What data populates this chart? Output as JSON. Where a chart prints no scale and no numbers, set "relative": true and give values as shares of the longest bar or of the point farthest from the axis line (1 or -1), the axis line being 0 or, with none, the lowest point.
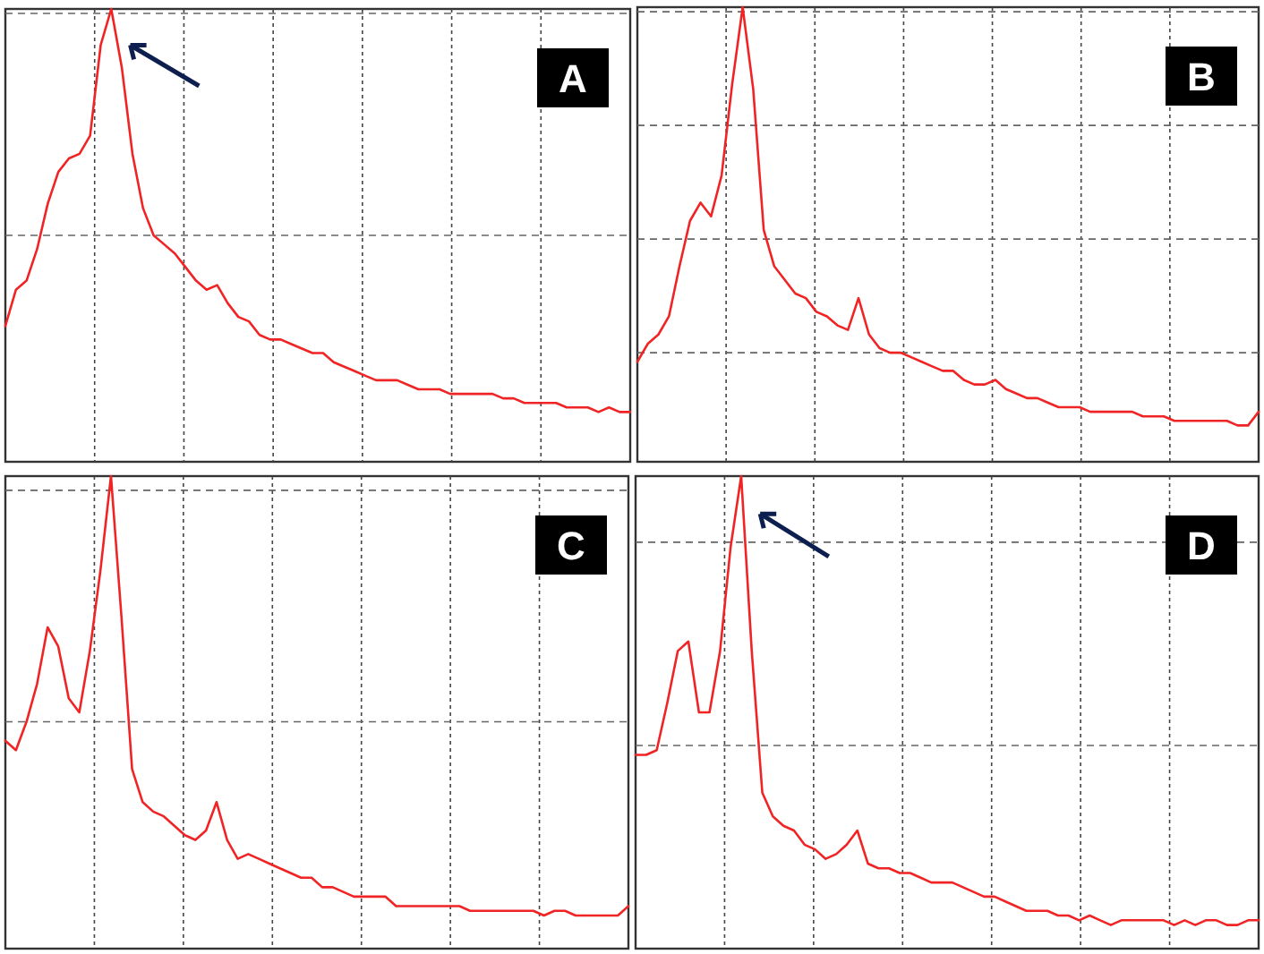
{
  "chart_data": [
    {
      "type": "line",
      "title": "A",
      "relative": true,
      "grid": "x",
      "ref_lines": [
        {
          "axis": "y",
          "value": 0.5,
          "color": "#666666",
          "line_style": "dashed"
        },
        {
          "axis": "y",
          "value": 0.99,
          "color": "#666666",
          "line_style": "dashed"
        }
      ],
      "categories": [
        null,
        null,
        null,
        null,
        null,
        null,
        null,
        null,
        null,
        null,
        null,
        null,
        null,
        null,
        null,
        null,
        null,
        null,
        null,
        null,
        null,
        null,
        null,
        null,
        null,
        null,
        null,
        null,
        null,
        null,
        null,
        null,
        null,
        null,
        null,
        null,
        null,
        null,
        null,
        null,
        null,
        null,
        null,
        null,
        null,
        null,
        null,
        null,
        null,
        null,
        null,
        null,
        null,
        null,
        null,
        null,
        null,
        null,
        null,
        null
      ],
      "series": [
        {
          "color": "#f02424",
          "values": [
            0.3,
            0.38,
            0.4,
            0.47,
            0.57,
            0.64,
            0.67,
            0.68,
            0.72,
            0.92,
            1.0,
            0.87,
            0.68,
            0.56,
            0.5,
            0.48,
            0.46,
            0.43,
            0.4,
            0.38,
            0.39,
            0.35,
            0.32,
            0.31,
            0.28,
            0.27,
            0.27,
            0.26,
            0.25,
            0.24,
            0.24,
            0.22,
            0.21,
            0.2,
            0.19,
            0.18,
            0.18,
            0.18,
            0.17,
            0.16,
            0.16,
            0.16,
            0.15,
            0.15,
            0.15,
            0.15,
            0.15,
            0.14,
            0.14,
            0.13,
            0.13,
            0.13,
            0.13,
            0.12,
            0.12,
            0.12,
            0.11,
            0.12,
            0.11,
            0.11
          ]
        }
      ]
    },
    {
      "type": "line",
      "title": "B",
      "relative": true,
      "grid": "x",
      "ref_lines": [
        {
          "axis": "y",
          "value": 0.24,
          "color": "#666666",
          "line_style": "dashed"
        },
        {
          "axis": "y",
          "value": 0.49,
          "color": "#666666",
          "line_style": "dashed"
        },
        {
          "axis": "y",
          "value": 0.74,
          "color": "#666666",
          "line_style": "dashed"
        },
        {
          "axis": "y",
          "value": 0.99,
          "color": "#666666",
          "line_style": "dashed"
        }
      ],
      "categories": [
        null,
        null,
        null,
        null,
        null,
        null,
        null,
        null,
        null,
        null,
        null,
        null,
        null,
        null,
        null,
        null,
        null,
        null,
        null,
        null,
        null,
        null,
        null,
        null,
        null,
        null,
        null,
        null,
        null,
        null,
        null,
        null,
        null,
        null,
        null,
        null,
        null,
        null,
        null,
        null,
        null,
        null,
        null,
        null,
        null,
        null,
        null,
        null,
        null,
        null,
        null,
        null,
        null,
        null,
        null,
        null,
        null,
        null,
        null,
        null
      ],
      "series": [
        {
          "color": "#f02424",
          "values": [
            0.22,
            0.26,
            0.28,
            0.32,
            0.43,
            0.53,
            0.57,
            0.54,
            0.63,
            0.83,
            1.0,
            0.82,
            0.51,
            0.43,
            0.4,
            0.37,
            0.36,
            0.33,
            0.32,
            0.3,
            0.29,
            0.36,
            0.28,
            0.25,
            0.24,
            0.24,
            0.23,
            0.22,
            0.21,
            0.2,
            0.2,
            0.18,
            0.17,
            0.17,
            0.18,
            0.16,
            0.15,
            0.14,
            0.14,
            0.13,
            0.12,
            0.12,
            0.12,
            0.11,
            0.11,
            0.11,
            0.11,
            0.11,
            0.1,
            0.1,
            0.1,
            0.09,
            0.09,
            0.09,
            0.09,
            0.09,
            0.09,
            0.08,
            0.08,
            0.11
          ]
        }
      ]
    },
    {
      "type": "line",
      "title": "C",
      "relative": true,
      "grid": "x",
      "ref_lines": [
        {
          "axis": "y",
          "value": 0.48,
          "color": "#666666",
          "line_style": "dashed"
        },
        {
          "axis": "y",
          "value": 0.97,
          "color": "#666666",
          "line_style": "dashed"
        }
      ],
      "categories": [
        null,
        null,
        null,
        null,
        null,
        null,
        null,
        null,
        null,
        null,
        null,
        null,
        null,
        null,
        null,
        null,
        null,
        null,
        null,
        null,
        null,
        null,
        null,
        null,
        null,
        null,
        null,
        null,
        null,
        null,
        null,
        null,
        null,
        null,
        null,
        null,
        null,
        null,
        null,
        null,
        null,
        null,
        null,
        null,
        null,
        null,
        null,
        null,
        null,
        null,
        null,
        null,
        null,
        null,
        null,
        null,
        null,
        null,
        null,
        null
      ],
      "series": [
        {
          "color": "#f02424",
          "values": [
            0.44,
            0.42,
            0.48,
            0.56,
            0.68,
            0.64,
            0.53,
            0.5,
            0.63,
            0.8,
            1.0,
            0.7,
            0.38,
            0.31,
            0.29,
            0.28,
            0.26,
            0.24,
            0.23,
            0.25,
            0.31,
            0.23,
            0.19,
            0.2,
            0.19,
            0.18,
            0.17,
            0.16,
            0.15,
            0.15,
            0.13,
            0.13,
            0.12,
            0.11,
            0.11,
            0.11,
            0.11,
            0.09,
            0.09,
            0.09,
            0.09,
            0.09,
            0.09,
            0.09,
            0.08,
            0.08,
            0.08,
            0.08,
            0.08,
            0.08,
            0.08,
            0.07,
            0.08,
            0.08,
            0.07,
            0.07,
            0.07,
            0.07,
            0.07,
            0.09
          ]
        }
      ]
    },
    {
      "type": "line",
      "title": "D",
      "relative": true,
      "grid": "x",
      "ref_lines": [
        {
          "axis": "y",
          "value": 0.43,
          "color": "#666666",
          "line_style": "dashed"
        },
        {
          "axis": "y",
          "value": 0.86,
          "color": "#666666",
          "line_style": "dashed"
        }
      ],
      "categories": [
        null,
        null,
        null,
        null,
        null,
        null,
        null,
        null,
        null,
        null,
        null,
        null,
        null,
        null,
        null,
        null,
        null,
        null,
        null,
        null,
        null,
        null,
        null,
        null,
        null,
        null,
        null,
        null,
        null,
        null,
        null,
        null,
        null,
        null,
        null,
        null,
        null,
        null,
        null,
        null,
        null,
        null,
        null,
        null,
        null,
        null,
        null,
        null,
        null,
        null,
        null,
        null,
        null,
        null,
        null,
        null,
        null,
        null,
        null,
        null
      ],
      "series": [
        {
          "color": "#f02424",
          "values": [
            0.41,
            0.41,
            0.42,
            0.52,
            0.63,
            0.65,
            0.5,
            0.5,
            0.63,
            0.85,
            1.0,
            0.63,
            0.33,
            0.28,
            0.26,
            0.25,
            0.22,
            0.21,
            0.19,
            0.2,
            0.22,
            0.25,
            0.18,
            0.17,
            0.17,
            0.16,
            0.16,
            0.15,
            0.14,
            0.14,
            0.14,
            0.13,
            0.12,
            0.11,
            0.11,
            0.1,
            0.09,
            0.08,
            0.08,
            0.08,
            0.07,
            0.07,
            0.06,
            0.07,
            0.06,
            0.05,
            0.06,
            0.06,
            0.06,
            0.06,
            0.06,
            0.05,
            0.06,
            0.05,
            0.06,
            0.06,
            0.05,
            0.05,
            0.06,
            0.06
          ]
        }
      ]
    }
  ]
}
